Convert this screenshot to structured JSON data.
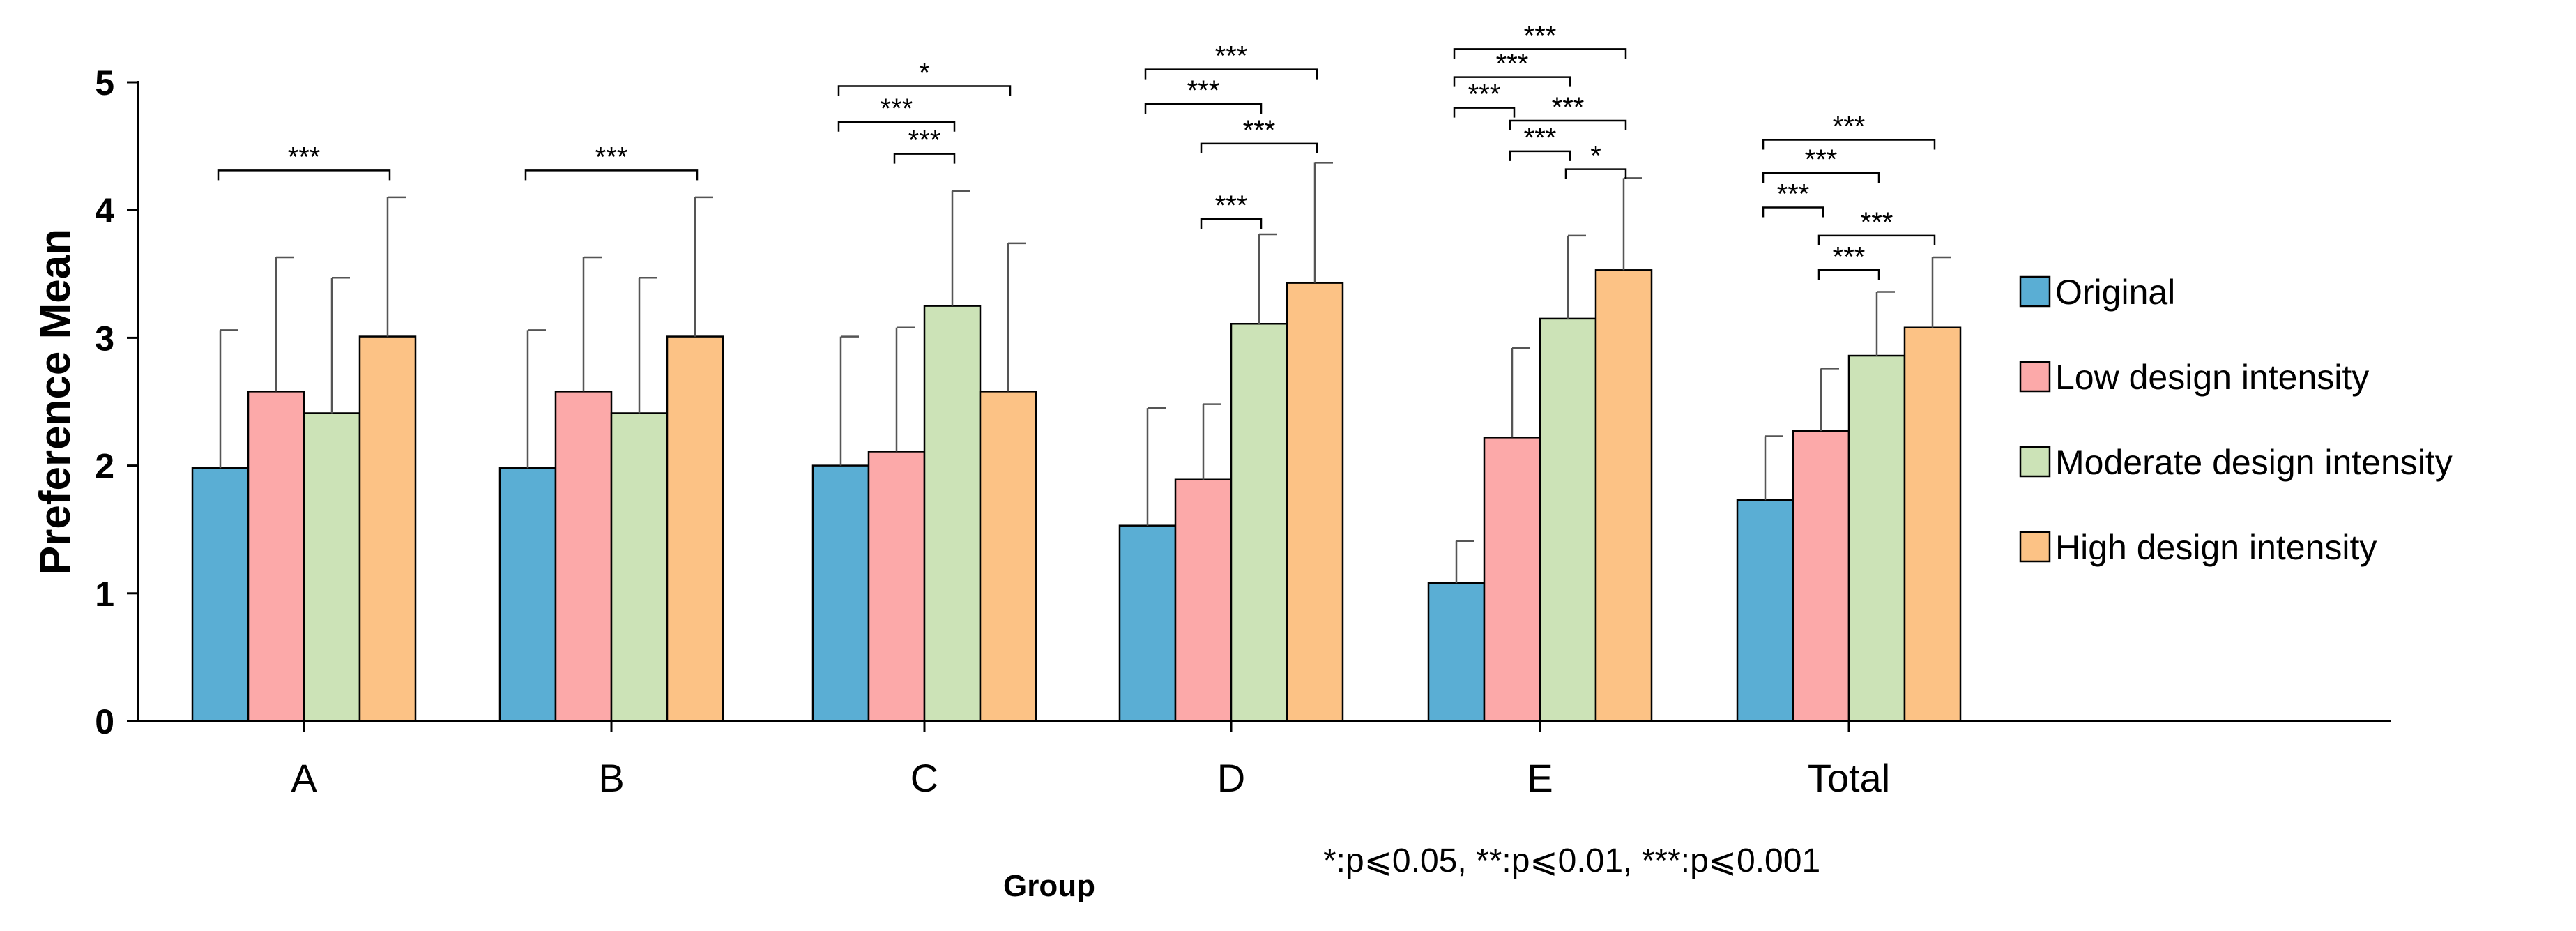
{
  "chart_data": {
    "type": "bar",
    "title": "",
    "xlabel": "Group",
    "ylabel": "Preference Mean",
    "ylim": [
      0,
      5
    ],
    "yticks": [
      0,
      1,
      2,
      3,
      4,
      5
    ],
    "categories": [
      "A",
      "B",
      "C",
      "D",
      "E",
      "Total"
    ],
    "series": [
      {
        "name": "Original",
        "color": "#5aaed4",
        "values": [
          1.98,
          1.98,
          2.0,
          1.53,
          1.08,
          1.73
        ],
        "errors": [
          1.08,
          1.08,
          1.01,
          0.92,
          0.33,
          0.5
        ]
      },
      {
        "name": "Low design intensity",
        "color": "#fca9a9",
        "values": [
          2.58,
          2.58,
          2.11,
          1.89,
          2.22,
          2.27
        ],
        "errors": [
          1.05,
          1.05,
          0.97,
          0.59,
          0.7,
          0.49
        ]
      },
      {
        "name": "Moderate design intensity",
        "color": "#cce3b7",
        "values": [
          2.41,
          2.41,
          3.25,
          3.11,
          3.15,
          2.86
        ],
        "errors": [
          1.06,
          1.06,
          0.9,
          0.7,
          0.65,
          0.5
        ]
      },
      {
        "name": "High design intensity",
        "color": "#fcc285",
        "values": [
          3.01,
          3.01,
          2.58,
          3.43,
          3.53,
          3.08
        ],
        "errors": [
          1.09,
          1.09,
          1.16,
          0.94,
          0.72,
          0.55
        ]
      }
    ],
    "significance": [
      {
        "category": "A",
        "from": 0,
        "to": 3,
        "y": 4.31,
        "label": "***"
      },
      {
        "category": "B",
        "from": 0,
        "to": 3,
        "y": 4.31,
        "label": "***"
      },
      {
        "category": "C",
        "from": 0,
        "to": 3,
        "y": 4.97,
        "label": "*"
      },
      {
        "category": "C",
        "from": 0,
        "to": 2,
        "y": 4.69,
        "label": "***"
      },
      {
        "category": "C",
        "from": 1,
        "to": 2,
        "y": 4.44,
        "label": "***"
      },
      {
        "category": "D",
        "from": 0,
        "to": 3,
        "y": 5.1,
        "label": "***"
      },
      {
        "category": "D",
        "from": 0,
        "to": 2,
        "y": 4.83,
        "label": "***"
      },
      {
        "category": "D",
        "from": 1,
        "to": 3,
        "y": 4.52,
        "label": "***"
      },
      {
        "category": "D",
        "from": 1,
        "to": 2,
        "y": 3.93,
        "label": "***"
      },
      {
        "category": "E",
        "from": 0,
        "to": 3,
        "y": 5.26,
        "label": "***"
      },
      {
        "category": "E",
        "from": 0,
        "to": 2,
        "y": 5.04,
        "label": "***"
      },
      {
        "category": "E",
        "from": 0,
        "to": 1,
        "y": 4.8,
        "label": "***"
      },
      {
        "category": "E",
        "from": 1,
        "to": 3,
        "y": 4.7,
        "label": "***"
      },
      {
        "category": "E",
        "from": 1,
        "to": 2,
        "y": 4.46,
        "label": "***"
      },
      {
        "category": "E",
        "from": 2,
        "to": 3,
        "y": 4.32,
        "label": "*"
      },
      {
        "category": "Total",
        "from": 0,
        "to": 3,
        "y": 4.55,
        "label": "***"
      },
      {
        "category": "Total",
        "from": 0,
        "to": 2,
        "y": 4.29,
        "label": "***"
      },
      {
        "category": "Total",
        "from": 0,
        "to": 1,
        "y": 4.02,
        "label": "***"
      },
      {
        "category": "Total",
        "from": 1,
        "to": 3,
        "y": 3.8,
        "label": "***"
      },
      {
        "category": "Total",
        "from": 1,
        "to": 2,
        "y": 3.53,
        "label": "***"
      }
    ],
    "legend_position": "right",
    "note": "*:p⩽0.05, **:p⩽0.01, ***:p⩽0.001"
  }
}
